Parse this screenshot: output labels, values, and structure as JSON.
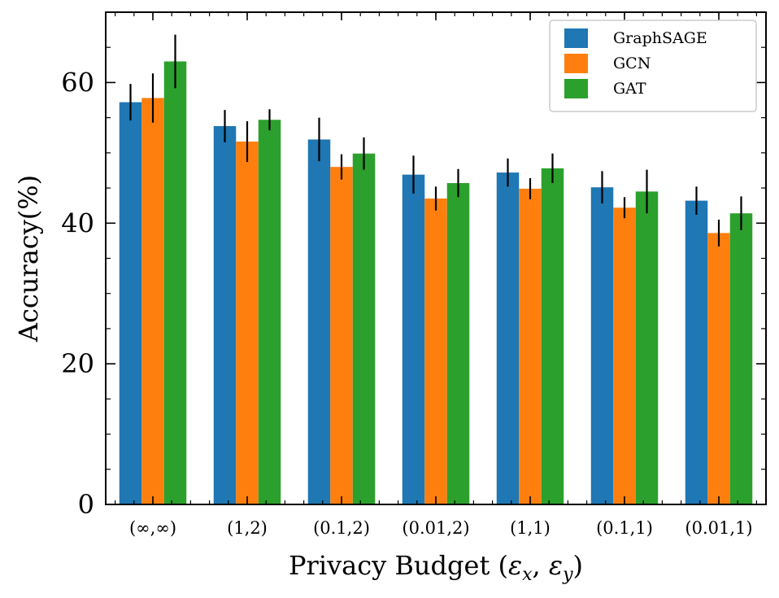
{
  "chart_data": {
    "type": "bar",
    "title": "",
    "xlabel": "Privacy Budget (",
    "xlabel_symbols": [
      "ε",
      "x",
      "ε",
      "y"
    ],
    "ylabel": "Accuracy(%)",
    "ylim": [
      0,
      70
    ],
    "yticks": [
      0,
      20,
      40,
      60
    ],
    "yticks_minor_step": 5,
    "grid": false,
    "legend_position": "top-right",
    "categories": [
      "(∞,∞)",
      "(1,2)",
      "(0.1,2)",
      "(0.01,2)",
      "(1,1)",
      "(0.1,1)",
      "(0.01,1)"
    ],
    "series": [
      {
        "name": "GraphSAGE",
        "color": "#1f77b4",
        "values": [
          57.2,
          53.8,
          51.9,
          46.9,
          47.2,
          45.1,
          43.2
        ],
        "errors": [
          2.6,
          2.3,
          3.1,
          2.7,
          2.0,
          2.3,
          2.0
        ]
      },
      {
        "name": "GCN",
        "color": "#ff7f0e",
        "values": [
          57.8,
          51.6,
          48.0,
          43.5,
          44.9,
          42.2,
          38.6
        ],
        "errors": [
          3.5,
          2.9,
          1.8,
          1.7,
          1.5,
          1.5,
          1.9
        ]
      },
      {
        "name": "GAT",
        "color": "#2ca02c",
        "values": [
          63.0,
          54.7,
          49.9,
          45.7,
          47.8,
          44.5,
          41.4
        ],
        "errors": [
          3.8,
          1.5,
          2.3,
          2.0,
          2.1,
          3.1,
          2.4
        ]
      }
    ]
  }
}
